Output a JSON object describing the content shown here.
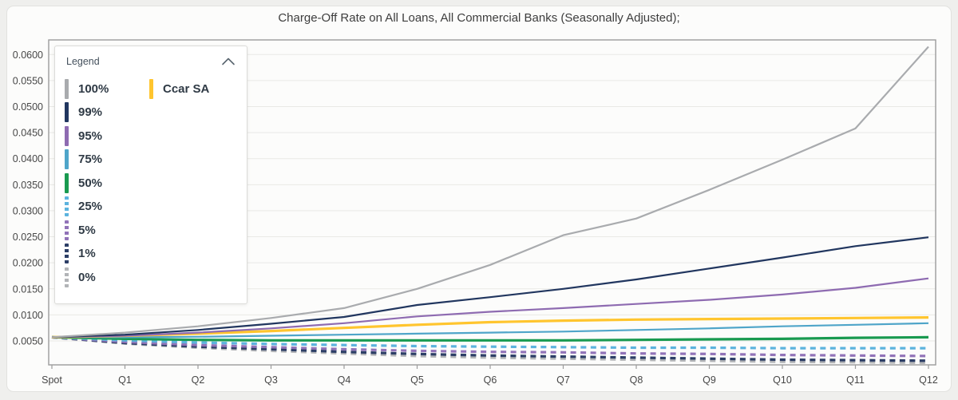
{
  "card": {
    "title": "Charge-Off Rate on All Loans, All Commercial Banks (Seasonally Adjusted);"
  },
  "legend": {
    "title": "Legend",
    "collapse_icon": "chevron-up-icon"
  },
  "colors": {
    "axis": "#9c9c9c",
    "grid": "#e9e9e6",
    "tick_text": "#474747",
    "card_background": "#fcfcfb",
    "page_background": "#efefed"
  },
  "chart_data": {
    "type": "line",
    "title": "Charge-Off Rate on All Loans, All Commercial Banks (Seasonally Adjusted);",
    "xlabel": "",
    "ylabel": "",
    "grid": "horizontal",
    "legend_position": "top-left-overlay",
    "ylim": [
      0.0004,
      0.0628
    ],
    "ytick_labels": [
      "0.0050",
      "0.0100",
      "0.0150",
      "0.0200",
      "0.0250",
      "0.0300",
      "0.0350",
      "0.0400",
      "0.0450",
      "0.0500",
      "0.0550",
      "0.0600"
    ],
    "categories": [
      "Spot",
      "Q1",
      "Q2",
      "Q3",
      "Q4",
      "Q5",
      "Q6",
      "Q7",
      "Q8",
      "Q9",
      "Q10",
      "Q11",
      "Q12"
    ],
    "series": [
      {
        "id": "p100",
        "label": "100%",
        "color": "#a9abae",
        "dashed": false,
        "legend_col": 1,
        "values": [
          0.0057,
          0.0066,
          0.0078,
          0.0094,
          0.0113,
          0.015,
          0.0196,
          0.0253,
          0.0285,
          0.034,
          0.0398,
          0.0458,
          0.0615
        ]
      },
      {
        "id": "p99",
        "label": "99%",
        "color": "#21365f",
        "dashed": false,
        "legend_col": 1,
        "values": [
          0.0057,
          0.0062,
          0.0071,
          0.0083,
          0.0096,
          0.0119,
          0.0134,
          0.015,
          0.0168,
          0.0189,
          0.021,
          0.0232,
          0.0249
        ]
      },
      {
        "id": "p95",
        "label": "95%",
        "color": "#8e6bb1",
        "dashed": false,
        "legend_col": 1,
        "values": [
          0.0057,
          0.006,
          0.0066,
          0.0074,
          0.0084,
          0.0097,
          0.0106,
          0.0113,
          0.0121,
          0.0129,
          0.0139,
          0.0152,
          0.017
        ]
      },
      {
        "id": "p75",
        "label": "75%",
        "color": "#4fa5c9",
        "dashed": false,
        "legend_col": 1,
        "values": [
          0.0057,
          0.0057,
          0.0058,
          0.006,
          0.0062,
          0.0064,
          0.0066,
          0.0068,
          0.0071,
          0.0074,
          0.0078,
          0.0081,
          0.0084
        ]
      },
      {
        "id": "p50",
        "label": "50%",
        "color": "#199a50",
        "dashed": false,
        "legend_col": 1,
        "values": [
          0.0057,
          0.0054,
          0.0052,
          0.0051,
          0.0051,
          0.0051,
          0.0051,
          0.0051,
          0.0052,
          0.0053,
          0.0054,
          0.0056,
          0.0057
        ]
      },
      {
        "id": "p25",
        "label": "25%",
        "color": "#5cb3de",
        "dashed": true,
        "legend_col": 1,
        "values": [
          0.0057,
          0.0051,
          0.0047,
          0.0044,
          0.0042,
          0.004,
          0.0039,
          0.0038,
          0.0037,
          0.0037,
          0.0036,
          0.0036,
          0.0036
        ]
      },
      {
        "id": "p5",
        "label": "5%",
        "color": "#9173b8",
        "dashed": true,
        "legend_col": 1,
        "values": [
          0.0057,
          0.0048,
          0.0042,
          0.0038,
          0.0034,
          0.0031,
          0.0029,
          0.0028,
          0.0026,
          0.0025,
          0.0023,
          0.0022,
          0.0021
        ]
      },
      {
        "id": "p1",
        "label": "1%",
        "color": "#2c3e66",
        "dashed": true,
        "legend_col": 1,
        "values": [
          0.0057,
          0.0046,
          0.0039,
          0.0034,
          0.0029,
          0.0025,
          0.0022,
          0.002,
          0.0018,
          0.0016,
          0.0014,
          0.0013,
          0.0012
        ]
      },
      {
        "id": "p0",
        "label": "0%",
        "color": "#b2b4b7",
        "dashed": true,
        "legend_col": 1,
        "values": [
          0.0057,
          0.0045,
          0.0037,
          0.0031,
          0.0026,
          0.0021,
          0.0018,
          0.0016,
          0.0014,
          0.0012,
          0.001,
          0.0009,
          0.0008
        ]
      },
      {
        "id": "ccar-sa",
        "label": "Ccar SA",
        "color": "#ffc52e",
        "dashed": false,
        "legend_col": 2,
        "values": [
          0.0057,
          0.006,
          0.0064,
          0.0069,
          0.0075,
          0.0081,
          0.0086,
          0.0089,
          0.0091,
          0.0092,
          0.0093,
          0.0094,
          0.0095
        ]
      }
    ]
  }
}
